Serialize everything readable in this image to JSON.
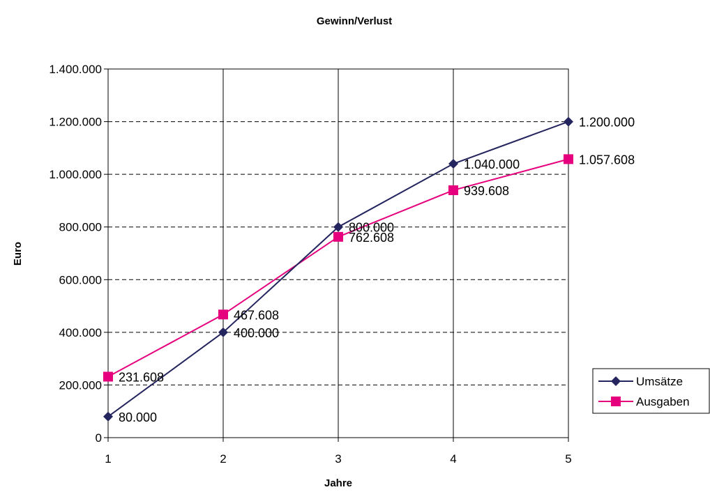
{
  "chart_data": {
    "type": "line",
    "title": "Gewinn/Verlust",
    "xlabel": "Jahre",
    "ylabel": "Euro",
    "x": [
      1,
      2,
      3,
      4,
      5
    ],
    "ylim": [
      0,
      1400000
    ],
    "yticks": [
      0,
      200000,
      400000,
      600000,
      800000,
      1000000,
      1200000,
      1400000
    ],
    "ytick_labels": [
      "0",
      "200.000",
      "400.000",
      "600.000",
      "800.000",
      "1.000.000",
      "1.200.000",
      "1.400.000"
    ],
    "xtick_labels": [
      "1",
      "2",
      "3",
      "4",
      "5"
    ],
    "grid": true,
    "legend": "right",
    "series": [
      {
        "name": "Umsätze",
        "color": "#24245e",
        "marker": "diamond",
        "values": [
          80000,
          400000,
          800000,
          1040000,
          1200000
        ],
        "labels": [
          "80.000",
          "400.000",
          "800.000",
          "1.040.000",
          "1.200.000"
        ]
      },
      {
        "name": "Ausgaben",
        "color": "#e6007e",
        "marker": "square",
        "values": [
          231608,
          467608,
          762608,
          939608,
          1057608
        ],
        "labels": [
          "231.608",
          "467.608",
          "762.608",
          "939.608",
          "1.057.608"
        ]
      }
    ]
  }
}
